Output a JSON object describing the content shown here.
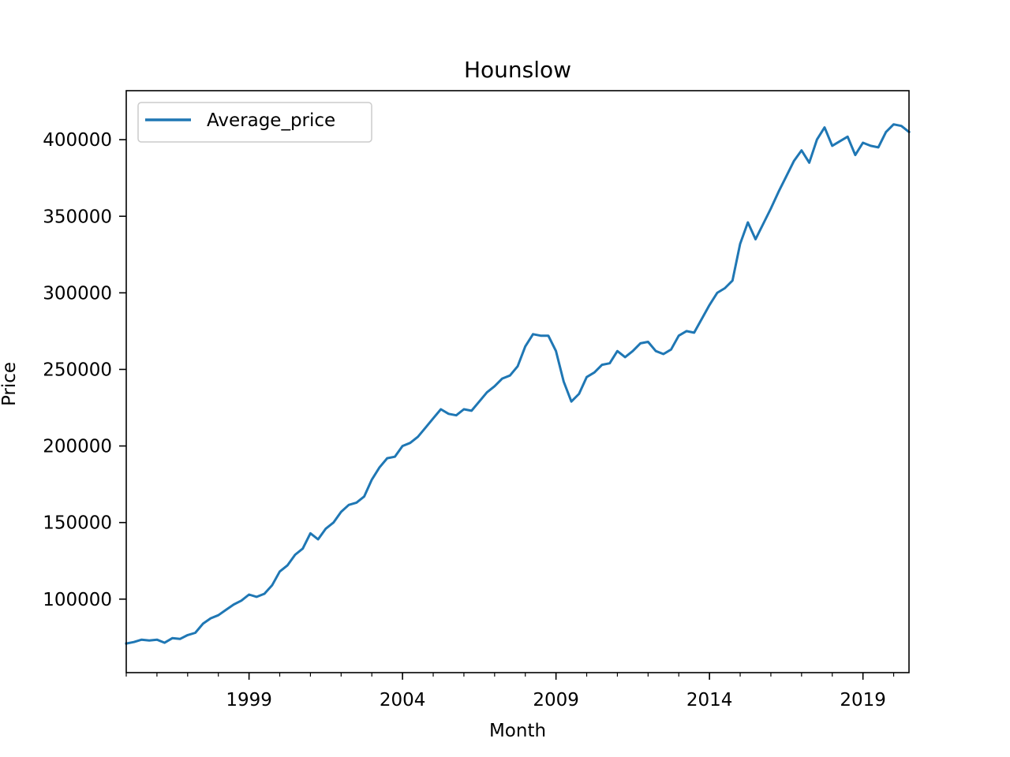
{
  "chart_data": {
    "type": "line",
    "title": "Hounslow",
    "xlabel": "Month",
    "ylabel": "Price",
    "xlim": [
      "1995-01",
      "2020-07"
    ],
    "ylim": [
      52000,
      432000
    ],
    "x_ticks": [
      "1999",
      "2004",
      "2009",
      "2014",
      "2019"
    ],
    "y_ticks": [
      100000,
      150000,
      200000,
      250000,
      300000,
      350000,
      400000
    ],
    "legend": {
      "position": "top-left",
      "entries": [
        "Average_price"
      ]
    },
    "grid": false,
    "series": [
      {
        "name": "Average_price",
        "color": "#1f77b4",
        "points": [
          [
            "1995-01",
            71000
          ],
          [
            "1995-04",
            72000
          ],
          [
            "1995-07",
            73500
          ],
          [
            "1995-10",
            73000
          ],
          [
            "1996-01",
            73500
          ],
          [
            "1996-04",
            71500
          ],
          [
            "1996-07",
            74500
          ],
          [
            "1996-10",
            74000
          ],
          [
            "1997-01",
            76500
          ],
          [
            "1997-04",
            78000
          ],
          [
            "1997-07",
            84000
          ],
          [
            "1997-10",
            87500
          ],
          [
            "1998-01",
            89500
          ],
          [
            "1998-04",
            93000
          ],
          [
            "1998-07",
            96500
          ],
          [
            "1998-10",
            99000
          ],
          [
            "1999-01",
            103000
          ],
          [
            "1999-04",
            101500
          ],
          [
            "1999-07",
            103500
          ],
          [
            "1999-10",
            109000
          ],
          [
            "2000-01",
            118000
          ],
          [
            "2000-04",
            122000
          ],
          [
            "2000-07",
            129000
          ],
          [
            "2000-10",
            133000
          ],
          [
            "2001-01",
            143000
          ],
          [
            "2001-04",
            139000
          ],
          [
            "2001-07",
            146000
          ],
          [
            "2001-10",
            150000
          ],
          [
            "2002-01",
            157000
          ],
          [
            "2002-04",
            161500
          ],
          [
            "2002-07",
            163000
          ],
          [
            "2002-10",
            167000
          ],
          [
            "2003-01",
            178000
          ],
          [
            "2003-04",
            186000
          ],
          [
            "2003-07",
            192000
          ],
          [
            "2003-10",
            193000
          ],
          [
            "2004-01",
            200000
          ],
          [
            "2004-04",
            202000
          ],
          [
            "2004-07",
            206000
          ],
          [
            "2004-10",
            212000
          ],
          [
            "2005-01",
            218000
          ],
          [
            "2005-04",
            224000
          ],
          [
            "2005-07",
            221000
          ],
          [
            "2005-10",
            220000
          ],
          [
            "2006-01",
            224000
          ],
          [
            "2006-04",
            223000
          ],
          [
            "2006-07",
            229000
          ],
          [
            "2006-10",
            235000
          ],
          [
            "2007-01",
            239000
          ],
          [
            "2007-04",
            244000
          ],
          [
            "2007-07",
            246000
          ],
          [
            "2007-10",
            252000
          ],
          [
            "2008-01",
            265000
          ],
          [
            "2008-04",
            273000
          ],
          [
            "2008-07",
            272000
          ],
          [
            "2008-10",
            272000
          ],
          [
            "2009-01",
            262000
          ],
          [
            "2009-04",
            242000
          ],
          [
            "2009-07",
            229000
          ],
          [
            "2009-10",
            234000
          ],
          [
            "2010-01",
            245000
          ],
          [
            "2010-04",
            248000
          ],
          [
            "2010-07",
            253000
          ],
          [
            "2010-10",
            254000
          ],
          [
            "2011-01",
            262000
          ],
          [
            "2011-04",
            258000
          ],
          [
            "2011-07",
            262000
          ],
          [
            "2011-10",
            267000
          ],
          [
            "2012-01",
            268000
          ],
          [
            "2012-04",
            262000
          ],
          [
            "2012-07",
            260000
          ],
          [
            "2012-10",
            263000
          ],
          [
            "2013-01",
            272000
          ],
          [
            "2013-04",
            275000
          ],
          [
            "2013-07",
            274000
          ],
          [
            "2013-10",
            283000
          ],
          [
            "2014-01",
            292000
          ],
          [
            "2014-04",
            300000
          ],
          [
            "2014-07",
            303000
          ],
          [
            "2014-10",
            308000
          ],
          [
            "2015-01",
            332000
          ],
          [
            "2015-04",
            346000
          ],
          [
            "2015-07",
            335000
          ],
          [
            "2015-10",
            345000
          ],
          [
            "2016-01",
            355000
          ],
          [
            "2016-04",
            366000
          ],
          [
            "2016-07",
            376000
          ],
          [
            "2016-10",
            386000
          ],
          [
            "2017-01",
            393000
          ],
          [
            "2017-04",
            385000
          ],
          [
            "2017-07",
            400000
          ],
          [
            "2017-10",
            408000
          ],
          [
            "2018-01",
            396000
          ],
          [
            "2018-04",
            399000
          ],
          [
            "2018-07",
            402000
          ],
          [
            "2018-10",
            390000
          ],
          [
            "2019-01",
            398000
          ],
          [
            "2019-04",
            396000
          ],
          [
            "2019-07",
            395000
          ],
          [
            "2019-10",
            405000
          ],
          [
            "2020-01",
            410000
          ],
          [
            "2020-04",
            409000
          ],
          [
            "2020-07",
            405000
          ]
        ]
      }
    ]
  }
}
